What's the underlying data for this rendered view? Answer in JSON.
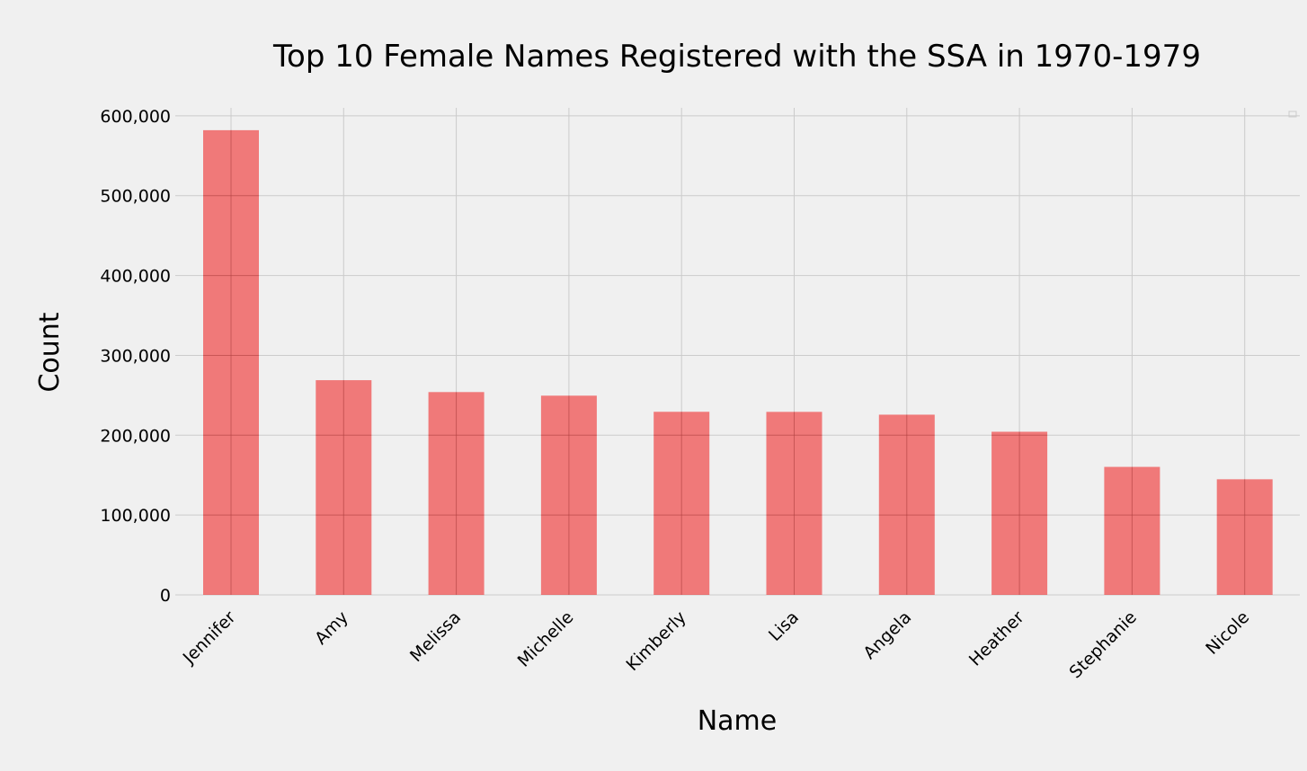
{
  "chart_data": {
    "type": "bar",
    "title": "Top 10 Female Names Registered with the SSA in 1970-1979",
    "xlabel": "Name",
    "ylabel": "Count",
    "categories": [
      "Jennifer",
      "Amy",
      "Melissa",
      "Michelle",
      "Kimberly",
      "Lisa",
      "Angela",
      "Heather",
      "Stephanie",
      "Nicole"
    ],
    "values": [
      582000,
      268900,
      254000,
      249500,
      229300,
      229200,
      225700,
      204300,
      160300,
      144800
    ],
    "ylim": [
      0,
      610000
    ],
    "yticks": [
      0,
      100000,
      200000,
      300000,
      400000,
      500000,
      600000
    ],
    "ytick_labels": [
      "0",
      "100,000",
      "200,000",
      "300,000",
      "400,000",
      "500,000",
      "600,000"
    ],
    "grid": true,
    "bar_color": "#f03030",
    "background_color": "#f0f0f0"
  }
}
